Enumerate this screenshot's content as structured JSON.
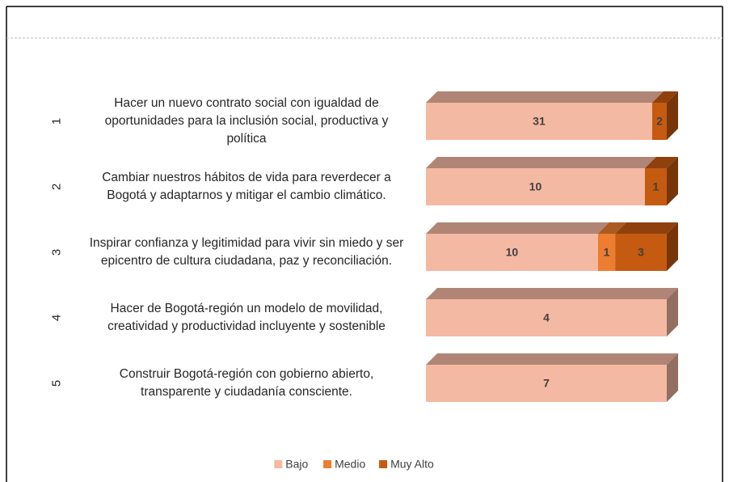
{
  "chart_data": {
    "type": "stacked-bar-3d-percent",
    "category_numbers": [
      "1",
      "2",
      "3",
      "4",
      "5"
    ],
    "categories": [
      "Hacer un nuevo contrato social con igualdad de oportunidades para la inclusión social, productiva y política",
      "Cambiar nuestros hábitos de vida para reverdecer a Bogotá y adaptarnos y mitigar el cambio climático.",
      "Inspirar confianza y legitimidad para vivir sin miedo y ser epicentro de cultura ciudadana, paz y reconciliación.",
      "Hacer de Bogotá-región un modelo de movilidad, creatividad y productividad incluyente y sostenible",
      "Construir Bogotá-región con gobierno abierto, transparente y ciudadanía consciente."
    ],
    "series": [
      {
        "name": "Bajo",
        "color": "#f4b9a2",
        "values": [
          31,
          10,
          10,
          4,
          7
        ]
      },
      {
        "name": "Medio",
        "color": "#ed7d31",
        "values": [
          null,
          null,
          1,
          null,
          null
        ]
      },
      {
        "name": "Muy Alto",
        "color": "#c55a11",
        "values": [
          2,
          1,
          3,
          null,
          null
        ]
      }
    ],
    "legend": "bottom"
  }
}
